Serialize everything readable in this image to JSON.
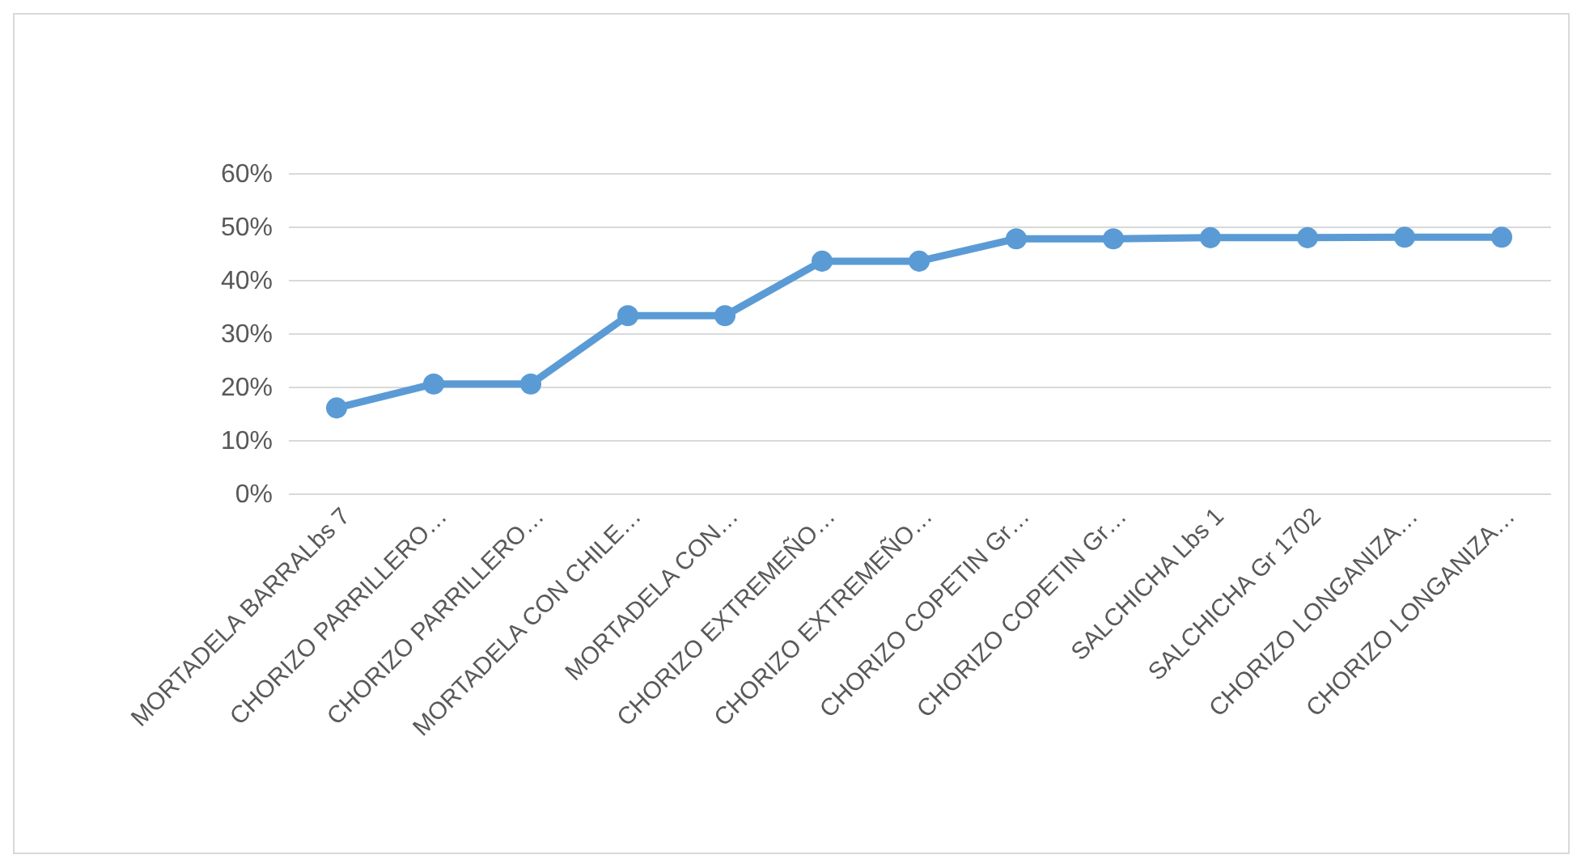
{
  "chart_data": {
    "type": "line",
    "categories": [
      "MORTADELA  BARRALbs 7",
      "CHORIZO PARRILLERO…",
      "CHORIZO PARRILLERO…",
      "MORTADELA CON CHILE…",
      "MORTADELA CON…",
      "CHORIZO EXTREMEÑO…",
      "CHORIZO EXTREMEÑO…",
      "CHORIZO COPETIN Gr…",
      "CHORIZO COPETIN Gr…",
      "SALCHICHA Lbs 1",
      "SALCHICHA Gr 1702",
      "CHORIZO LONGANIZA…",
      "CHORIZO LONGANIZA…"
    ],
    "series": [
      {
        "color": "#5b9bd5",
        "values": [
          16,
          20.5,
          20.5,
          33.3,
          33.3,
          43.5,
          43.5,
          47.7,
          47.7,
          47.9,
          47.9,
          48,
          48
        ]
      }
    ],
    "ylim": [
      0,
      60
    ],
    "yticks": [
      {
        "value": 0,
        "label": "0%"
      },
      {
        "value": 10,
        "label": "10%"
      },
      {
        "value": 20,
        "label": "20%"
      },
      {
        "value": 30,
        "label": "30%"
      },
      {
        "value": 40,
        "label": "40%"
      },
      {
        "value": 50,
        "label": "50%"
      },
      {
        "value": 60,
        "label": "60%"
      }
    ],
    "grid": "y",
    "marker": "circle",
    "line_style": "solid"
  }
}
